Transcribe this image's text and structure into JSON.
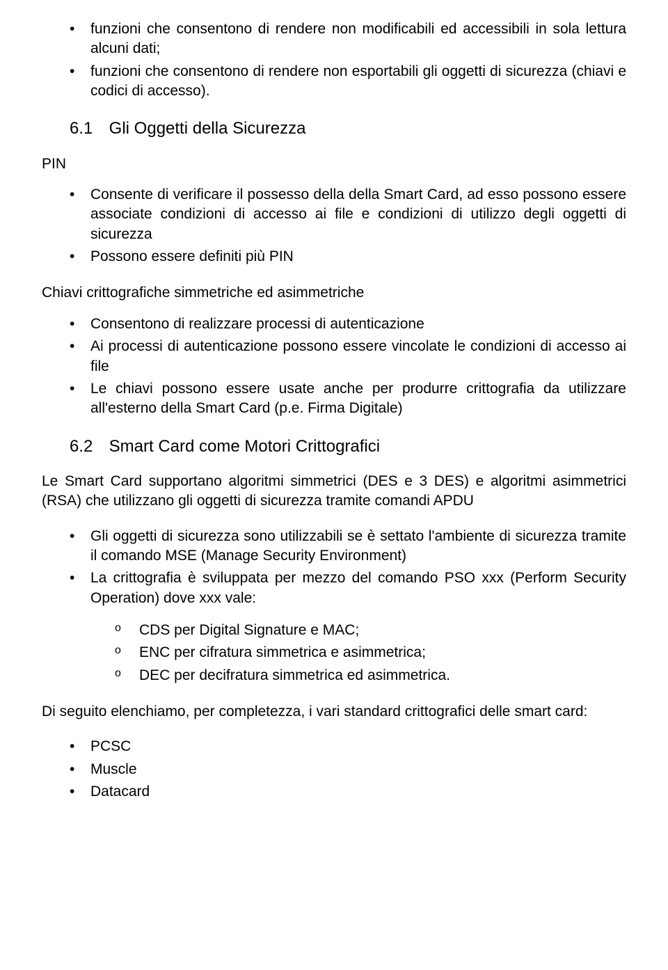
{
  "colors": {
    "text": "#000000",
    "background": "#ffffff"
  },
  "typography": {
    "font_family": "Comic Sans MS",
    "body_fontsize_pt": 16,
    "heading_fontsize_pt": 18
  },
  "intro_bullets": [
    "funzioni che consentono di rendere non modificabili ed accessibili in sola lettura alcuni dati;",
    "funzioni che consentono di rendere non esportabili gli oggetti di sicurezza (chiavi e codici di accesso)."
  ],
  "section_6_1": {
    "number": "6.1",
    "title": "Gli Oggetti della Sicurezza"
  },
  "pin_label": "PIN",
  "pin_bullets": [
    "Consente di verificare il possesso della della Smart Card, ad esso possono essere associate condizioni di accesso ai file e condizioni di utilizzo degli oggetti di sicurezza",
    "Possono essere definiti più PIN"
  ],
  "keys_label": "Chiavi crittografiche simmetriche ed asimmetriche",
  "keys_bullets": [
    "Consentono di realizzare processi di autenticazione",
    "Ai processi di autenticazione possono essere vincolate le condizioni di accesso ai file",
    "Le chiavi possono essere usate anche per produrre crittografia da utilizzare all'esterno della Smart Card (p.e. Firma Digitale)"
  ],
  "section_6_2": {
    "number": "6.2",
    "title": "Smart Card come Motori Crittografici"
  },
  "s62_intro": "Le Smart Card supportano algoritmi simmetrici (DES e 3 DES) e algoritmi asimmetrici (RSA) che utilizzano gli oggetti di sicurezza tramite comandi APDU",
  "s62_bullets": [
    "Gli oggetti di sicurezza sono utilizzabili se è settato l'ambiente di sicurezza tramite il comando MSE (Manage Security Environment)",
    "La crittografia è sviluppata per mezzo del comando PSO xxx (Perform Security Operation) dove xxx vale:"
  ],
  "s62_sub_o": [
    "CDS per Digital Signature e MAC;",
    "ENC per cifratura simmetrica e asimmetrica;",
    "DEC per decifratura simmetrica ed asimmetrica."
  ],
  "s62_para": "Di seguito elenchiamo, per completezza, i vari standard crittografici delle smart card:",
  "standards": [
    "PCSC",
    "Muscle",
    "Datacard"
  ]
}
